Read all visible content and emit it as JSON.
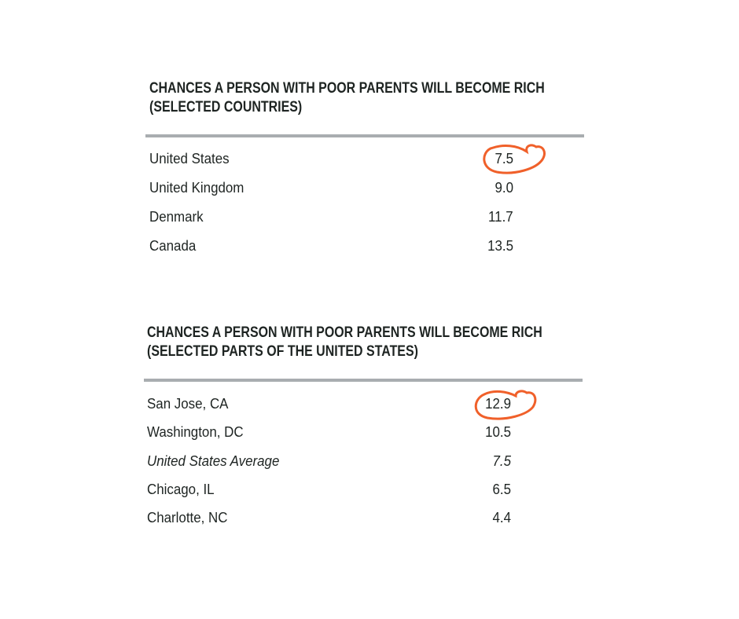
{
  "tables": [
    {
      "title_line1": "CHANCES A PERSON WITH POOR PARENTS WILL BECOME RICH",
      "title_line2": "(SELECTED COUNTRIES)",
      "rows": [
        {
          "label": "United States",
          "value": "7.5",
          "circled": true
        },
        {
          "label": "United Kingdom",
          "value": "9.0"
        },
        {
          "label": "Denmark",
          "value": "11.7"
        },
        {
          "label": "Canada",
          "value": "13.5"
        }
      ]
    },
    {
      "title_line1": "CHANCES A PERSON WITH POOR PARENTS WILL BECOME RICH",
      "title_line2": "(SELECTED PARTS OF THE UNITED STATES)",
      "rows": [
        {
          "label": "San Jose, CA",
          "value": "12.9",
          "circled": true
        },
        {
          "label": "Washington, DC",
          "value": "10.5"
        },
        {
          "label": "United States Average",
          "value": "7.5",
          "italic": true
        },
        {
          "label": "Chicago, IL",
          "value": "6.5"
        },
        {
          "label": "Charlotte, NC",
          "value": "4.4"
        }
      ]
    }
  ],
  "colors": {
    "annotation": "#f0602a",
    "rule": "#a9adb0",
    "text": "#1e2422"
  }
}
